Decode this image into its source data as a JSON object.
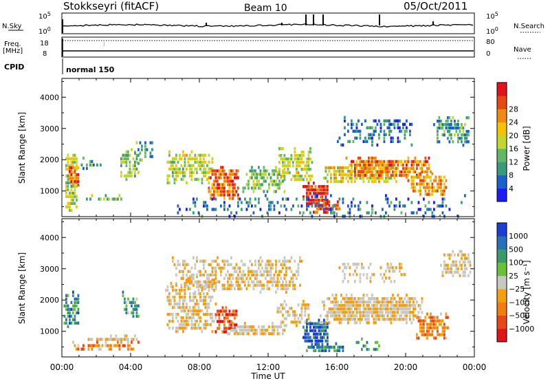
{
  "header": {
    "station": "Stokkseyri (fitACF)",
    "beam": "Beam 10",
    "date": "05/Oct/2011"
  },
  "small_panels": {
    "nsky_label": "N.Sky",
    "nsky_ticks": [
      "10^5",
      "10^0"
    ],
    "nsearch_label": "N.Search",
    "nsearch_ticks": [
      "10^5",
      "10^0"
    ],
    "freq_label": "Freq.",
    "freq_unit": "[MHz]",
    "freq_ticks": [
      "18",
      "8"
    ],
    "nave_label": "Nave",
    "nave_ticks": [
      "80",
      "0"
    ],
    "cpid_label": "CPID",
    "cpid_value": "normal 150"
  },
  "chart_data": [
    {
      "type": "heatmap",
      "title": "",
      "xlabel": "Time UT",
      "ylabel": "Slant Range [km]",
      "x_ticks": [
        "00:00",
        "04:00",
        "08:00",
        "12:00",
        "16:00",
        "20:00",
        "00:00"
      ],
      "xlim_hours": [
        0,
        24
      ],
      "y_ticks": [
        1000,
        2000,
        3000,
        4000
      ],
      "ylim": [
        180,
        4600
      ],
      "colorbar": {
        "label": "Power [dB]",
        "ticks": [
          "4",
          "8",
          "12",
          "16",
          "20",
          "24",
          "28"
        ],
        "colors": [
          "#1c1cff",
          "#1d5fd0",
          "#3a9b7b",
          "#64b764",
          "#bfd72e",
          "#f5c400",
          "#f08a10",
          "#e54a13",
          "#e0141d"
        ]
      },
      "regions": [
        {
          "t": [
            0.1,
            0.9
          ],
          "r": [
            400,
            2300
          ],
          "level": 0.5,
          "density": 0.75
        },
        {
          "t": [
            0.3,
            1.0
          ],
          "r": [
            1200,
            1900
          ],
          "level": 0.8,
          "density": 0.8
        },
        {
          "t": [
            1.0,
            3.5
          ],
          "r": [
            700,
            900
          ],
          "level": 0.45,
          "density": 0.7
        },
        {
          "t": [
            1.0,
            2.5
          ],
          "r": [
            1700,
            2100
          ],
          "level": 0.3,
          "density": 0.35
        },
        {
          "t": [
            3.3,
            4.5
          ],
          "r": [
            1400,
            2300
          ],
          "level": 0.4,
          "density": 0.5
        },
        {
          "t": [
            4.0,
            5.3
          ],
          "r": [
            1900,
            2700
          ],
          "level": 0.3,
          "density": 0.4
        },
        {
          "t": [
            6.0,
            8.8
          ],
          "r": [
            1300,
            2300
          ],
          "level": 0.5,
          "density": 0.6
        },
        {
          "t": [
            8.5,
            10.3
          ],
          "r": [
            800,
            1800
          ],
          "level": 0.8,
          "density": 0.85
        },
        {
          "t": [
            10.5,
            13.0
          ],
          "r": [
            1000,
            1800
          ],
          "level": 0.4,
          "density": 0.55
        },
        {
          "t": [
            12.5,
            14.6
          ],
          "r": [
            1300,
            2400
          ],
          "level": 0.5,
          "density": 0.6
        },
        {
          "t": [
            14.0,
            15.5
          ],
          "r": [
            600,
            1300
          ],
          "level": 0.9,
          "density": 0.9
        },
        {
          "t": [
            14.5,
            16.2
          ],
          "r": [
            350,
            700
          ],
          "level": 0.85,
          "density": 0.85
        },
        {
          "t": [
            15.2,
            19.5
          ],
          "r": [
            1300,
            1900
          ],
          "level": 0.55,
          "density": 0.75
        },
        {
          "t": [
            16.5,
            21.5
          ],
          "r": [
            1500,
            2100
          ],
          "level": 0.75,
          "density": 0.8
        },
        {
          "t": [
            20.0,
            22.5
          ],
          "r": [
            900,
            1600
          ],
          "level": 0.7,
          "density": 0.75
        },
        {
          "t": [
            16.0,
            20.5
          ],
          "r": [
            2500,
            3400
          ],
          "level": 0.2,
          "density": 0.35
        },
        {
          "t": [
            21.5,
            23.8
          ],
          "r": [
            2500,
            3500
          ],
          "level": 0.3,
          "density": 0.45
        },
        {
          "t": [
            6.5,
            23.5
          ],
          "r": [
            200,
            900
          ],
          "level": 0.2,
          "density": 0.18
        }
      ]
    },
    {
      "type": "heatmap",
      "title": "",
      "xlabel": "Time UT",
      "ylabel": "Slant Range [km]",
      "x_ticks": [
        "00:00",
        "04:00",
        "08:00",
        "12:00",
        "16:00",
        "20:00",
        "00:00"
      ],
      "xlim_hours": [
        0,
        24
      ],
      "y_ticks": [
        1000,
        2000,
        3000,
        4000
      ],
      "ylim": [
        180,
        4600
      ],
      "colorbar": {
        "label": "Velocity [m s⁻¹]",
        "ticks": [
          "1000",
          "500",
          "100",
          "25",
          "−25",
          "−100",
          "−500",
          "−1000"
        ],
        "colors": [
          "#1c3fd2",
          "#2a70b8",
          "#3a9a6a",
          "#67c237",
          "#c8c8c0",
          "#f0a010",
          "#f07d12",
          "#e8471a",
          "#e0141d"
        ]
      },
      "regions": [
        {
          "t": [
            0.1,
            1.0
          ],
          "r": [
            1200,
            2300
          ],
          "level": 0.75,
          "density": 0.7
        },
        {
          "t": [
            1.0,
            4.5
          ],
          "r": [
            700,
            900
          ],
          "level": 0.45,
          "density": 0.8
        },
        {
          "t": [
            0.5,
            4.5
          ],
          "r": [
            400,
            700
          ],
          "level": 0.3,
          "density": 0.35
        },
        {
          "t": [
            3.5,
            4.5
          ],
          "r": [
            1500,
            2300
          ],
          "level": 0.7,
          "density": 0.6
        },
        {
          "t": [
            6.0,
            9.0
          ],
          "r": [
            1000,
            2800
          ],
          "level": 0.45,
          "density": 0.55
        },
        {
          "t": [
            6.3,
            14.0
          ],
          "r": [
            2300,
            3400
          ],
          "level": 0.45,
          "density": 0.55
        },
        {
          "t": [
            8.8,
            10.2
          ],
          "r": [
            1000,
            1800
          ],
          "level": 0.15,
          "density": 0.7
        },
        {
          "t": [
            9.5,
            13.0
          ],
          "r": [
            900,
            1300
          ],
          "level": 0.45,
          "density": 0.75
        },
        {
          "t": [
            12.5,
            14.5
          ],
          "r": [
            1200,
            2000
          ],
          "level": 0.45,
          "density": 0.55
        },
        {
          "t": [
            14.0,
            15.5
          ],
          "r": [
            600,
            1400
          ],
          "level": 0.9,
          "density": 0.85
        },
        {
          "t": [
            14.0,
            16.5
          ],
          "r": [
            350,
            650
          ],
          "level": 0.75,
          "density": 0.75
        },
        {
          "t": [
            15.0,
            21.0
          ],
          "r": [
            1300,
            2200
          ],
          "level": 0.45,
          "density": 0.85
        },
        {
          "t": [
            17.0,
            18.5
          ],
          "r": [
            400,
            800
          ],
          "level": 0.72,
          "density": 0.4
        },
        {
          "t": [
            20.5,
            22.5
          ],
          "r": [
            800,
            1600
          ],
          "level": 0.3,
          "density": 0.7
        },
        {
          "t": [
            22.0,
            23.8
          ],
          "r": [
            2800,
            3600
          ],
          "level": 0.45,
          "density": 0.5
        },
        {
          "t": [
            16.0,
            20.5
          ],
          "r": [
            2600,
            3300
          ],
          "level": 0.45,
          "density": 0.3
        }
      ]
    }
  ]
}
